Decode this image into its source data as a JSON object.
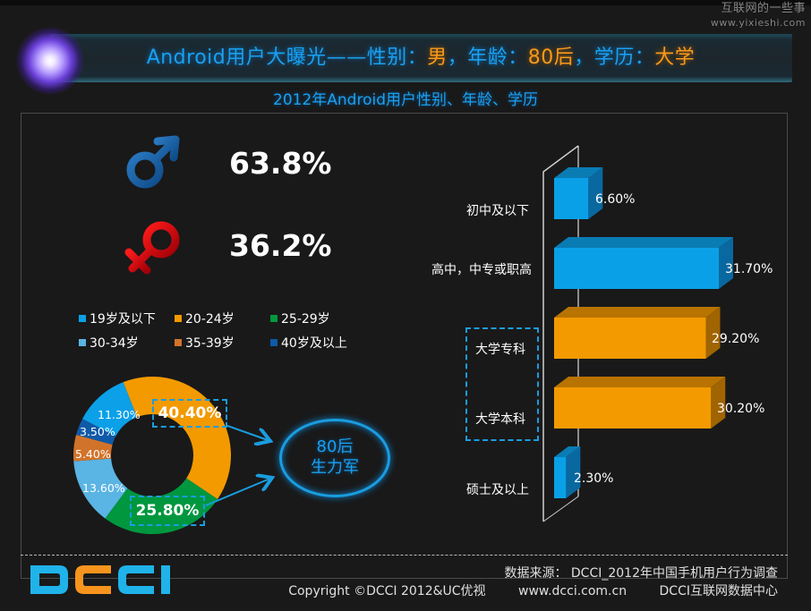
{
  "watermark": {
    "line1": "互联网的一些事",
    "line2": "www.yixieshi.com"
  },
  "header": {
    "title_prefix": "Android用户大曝光——性别：",
    "gender_value": "男",
    "sep1": "，年龄：",
    "age_value": "80后",
    "sep2": "，学历：",
    "edu_value": "大学",
    "subtitle": "2012年Android用户性别、年龄、学历"
  },
  "gender": {
    "male": {
      "icon": "male-symbol-icon",
      "percent": "63.8%",
      "color": "#1e63a8"
    },
    "female": {
      "icon": "female-symbol-icon",
      "percent": "36.2%",
      "color": "#e0000a"
    }
  },
  "age_callouts": {
    "highlight_1": "40.40%",
    "highlight_2": "25.80%",
    "ellipse_line1": "80后",
    "ellipse_line2": "生力军"
  },
  "footer": {
    "logo": "DCCI",
    "source": "数据来源：  DCCI_2012年中国手机用户行为调查",
    "copyright": "Copyright ©DCCI 2012&UC优视",
    "website": "www.dcci.com.cn",
    "org": "DCCI互联网数据中心"
  },
  "chart_data": [
    {
      "type": "pie",
      "title": "Android用户年龄分布",
      "variant": "donut",
      "categories": [
        "19岁及以下",
        "20-24岁",
        "25-29岁",
        "30-34岁",
        "35-39岁",
        "40岁及以上"
      ],
      "values": [
        11.3,
        40.4,
        25.8,
        13.6,
        5.4,
        3.5
      ],
      "labels": [
        "11.30%",
        "40.40%",
        "25.80%",
        "13.60%",
        "5.40%",
        "3.50%"
      ],
      "colors": [
        "#0ba0e8",
        "#f39a00",
        "#00973f",
        "#5ab4e4",
        "#d2732a",
        "#0f5aa8"
      ],
      "legend": [
        {
          "label": "19岁及以下",
          "color": "#0ba0e8"
        },
        {
          "label": "20-24岁",
          "color": "#f39a00"
        },
        {
          "label": "25-29岁",
          "color": "#00973f"
        },
        {
          "label": "30-34岁",
          "color": "#5ab4e4"
        },
        {
          "label": "35-39岁",
          "color": "#d2732a"
        },
        {
          "label": "40岁及以上",
          "color": "#0f5aa8"
        }
      ],
      "legend_position": "top"
    },
    {
      "type": "bar",
      "orientation": "horizontal",
      "style": "3d",
      "title": "Android用户学历分布",
      "categories": [
        "初中及以下",
        "高中，中专或职高",
        "大学专科",
        "大学本科",
        "硕士及以上"
      ],
      "values": [
        6.6,
        31.7,
        29.2,
        30.2,
        2.3
      ],
      "labels": [
        "6.60%",
        "31.70%",
        "29.20%",
        "30.20%",
        "2.30%"
      ],
      "colors": [
        "#0aa0e8",
        "#0aa0e8",
        "#f39a00",
        "#f39a00",
        "#0aa0e8"
      ],
      "highlighted": [
        "大学专科",
        "大学本科"
      ],
      "grid": false
    }
  ]
}
